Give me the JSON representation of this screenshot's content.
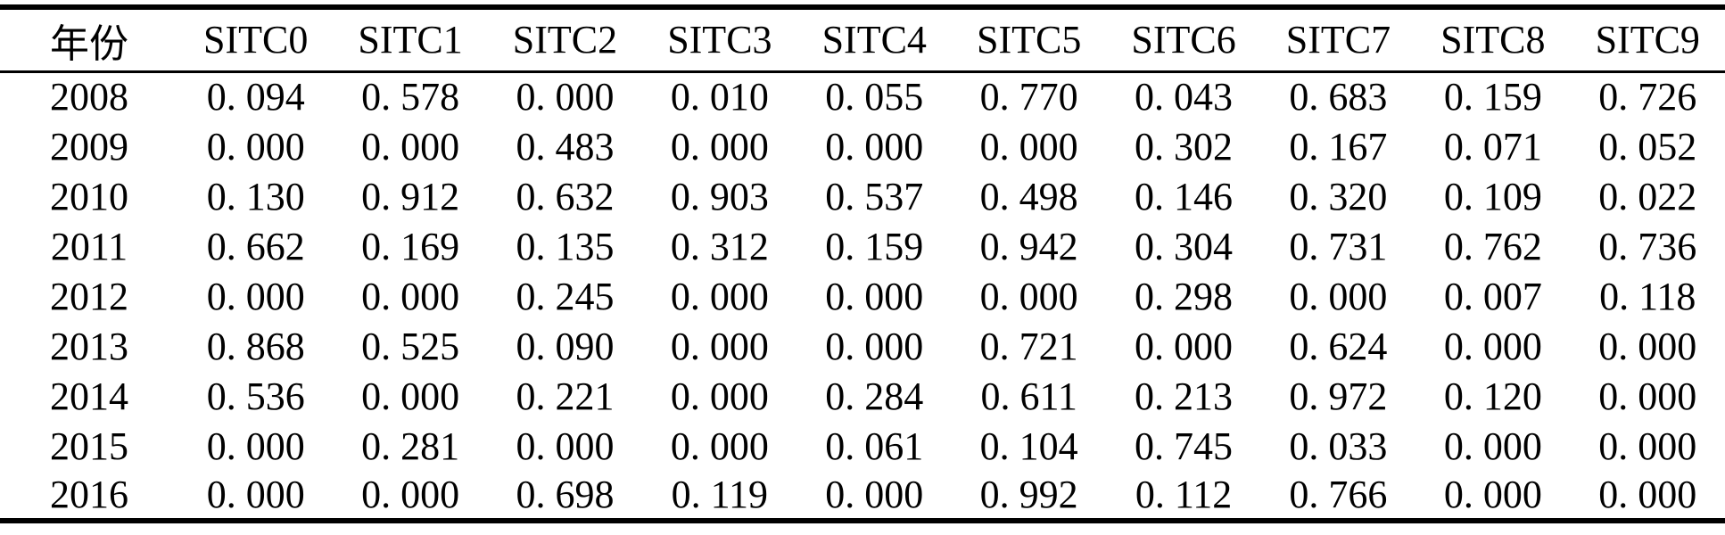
{
  "colors": {
    "background": "#ffffff",
    "text": "#000000",
    "rule": "#000000"
  },
  "table": {
    "columns": [
      "年份",
      "SITC0",
      "SITC1",
      "SITC2",
      "SITC3",
      "SITC4",
      "SITC5",
      "SITC6",
      "SITC7",
      "SITC8",
      "SITC9"
    ],
    "rows": [
      {
        "year": "2008",
        "values": [
          "0. 094",
          "0. 578",
          "0. 000",
          "0. 010",
          "0. 055",
          "0. 770",
          "0. 043",
          "0. 683",
          "0. 159",
          "0. 726"
        ]
      },
      {
        "year": "2009",
        "values": [
          "0. 000",
          "0. 000",
          "0. 483",
          "0. 000",
          "0. 000",
          "0. 000",
          "0. 302",
          "0. 167",
          "0. 071",
          "0. 052"
        ]
      },
      {
        "year": "2010",
        "values": [
          "0. 130",
          "0. 912",
          "0. 632",
          "0. 903",
          "0. 537",
          "0. 498",
          "0. 146",
          "0. 320",
          "0. 109",
          "0. 022"
        ]
      },
      {
        "year": "2011",
        "values": [
          "0. 662",
          "0. 169",
          "0. 135",
          "0. 312",
          "0. 159",
          "0. 942",
          "0. 304",
          "0. 731",
          "0. 762",
          "0. 736"
        ]
      },
      {
        "year": "2012",
        "values": [
          "0. 000",
          "0. 000",
          "0. 245",
          "0. 000",
          "0. 000",
          "0. 000",
          "0. 298",
          "0. 000",
          "0. 007",
          "0. 118"
        ]
      },
      {
        "year": "2013",
        "values": [
          "0. 868",
          "0. 525",
          "0. 090",
          "0. 000",
          "0. 000",
          "0. 721",
          "0. 000",
          "0. 624",
          "0. 000",
          "0. 000"
        ]
      },
      {
        "year": "2014",
        "values": [
          "0. 536",
          "0. 000",
          "0. 221",
          "0. 000",
          "0. 284",
          "0. 611",
          "0. 213",
          "0. 972",
          "0. 120",
          "0. 000"
        ]
      },
      {
        "year": "2015",
        "values": [
          "0. 000",
          "0. 281",
          "0. 000",
          "0. 000",
          "0. 061",
          "0. 104",
          "0. 745",
          "0. 033",
          "0. 000",
          "0. 000"
        ]
      },
      {
        "year": "2016",
        "values": [
          "0. 000",
          "0. 000",
          "0. 698",
          "0. 119",
          "0. 000",
          "0. 992",
          "0. 112",
          "0. 766",
          "0. 000",
          "0. 000"
        ]
      }
    ]
  }
}
